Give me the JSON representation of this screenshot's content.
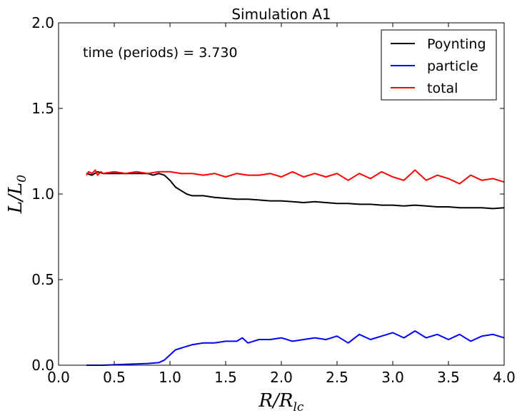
{
  "chart_data": {
    "type": "line",
    "title": "Simulation A1",
    "annotation": "time (periods) = 3.730",
    "xlabel": "R/R_lc",
    "ylabel": "L/L_0",
    "xlim": [
      0.0,
      4.0
    ],
    "ylim": [
      0.0,
      2.0
    ],
    "xticks": [
      "0.0",
      "0.5",
      "1.0",
      "1.5",
      "2.0",
      "2.5",
      "3.0",
      "3.5",
      "4.0"
    ],
    "yticks": [
      "0.0",
      "0.5",
      "1.0",
      "1.5",
      "2.0"
    ],
    "grid": false,
    "legend_position": "top-right",
    "series": [
      {
        "name": "Poynting",
        "color": "#000000",
        "x": [
          0.25,
          0.3,
          0.35,
          0.4,
          0.5,
          0.6,
          0.7,
          0.8,
          0.85,
          0.9,
          0.95,
          1.0,
          1.05,
          1.1,
          1.15,
          1.2,
          1.3,
          1.4,
          1.5,
          1.6,
          1.7,
          1.8,
          1.9,
          2.0,
          2.1,
          2.2,
          2.3,
          2.4,
          2.5,
          2.6,
          2.7,
          2.8,
          2.9,
          3.0,
          3.1,
          3.2,
          3.3,
          3.4,
          3.5,
          3.6,
          3.7,
          3.8,
          3.9,
          4.0
        ],
        "y": [
          1.12,
          1.11,
          1.13,
          1.12,
          1.12,
          1.12,
          1.12,
          1.12,
          1.11,
          1.12,
          1.11,
          1.08,
          1.04,
          1.02,
          1.0,
          0.99,
          0.99,
          0.98,
          0.975,
          0.97,
          0.97,
          0.965,
          0.96,
          0.96,
          0.955,
          0.95,
          0.955,
          0.95,
          0.945,
          0.945,
          0.94,
          0.94,
          0.935,
          0.935,
          0.93,
          0.935,
          0.93,
          0.925,
          0.925,
          0.92,
          0.92,
          0.92,
          0.915,
          0.92
        ]
      },
      {
        "name": "particle",
        "color": "#0000ff",
        "x": [
          0.25,
          0.4,
          0.6,
          0.8,
          0.9,
          0.95,
          1.0,
          1.05,
          1.1,
          1.15,
          1.2,
          1.3,
          1.4,
          1.5,
          1.6,
          1.65,
          1.7,
          1.8,
          1.9,
          2.0,
          2.1,
          2.2,
          2.3,
          2.4,
          2.5,
          2.6,
          2.7,
          2.8,
          2.9,
          3.0,
          3.1,
          3.2,
          3.3,
          3.4,
          3.5,
          3.6,
          3.7,
          3.8,
          3.9,
          4.0
        ],
        "y": [
          0.0,
          0.0,
          0.005,
          0.01,
          0.015,
          0.03,
          0.06,
          0.09,
          0.1,
          0.11,
          0.12,
          0.13,
          0.13,
          0.14,
          0.14,
          0.16,
          0.13,
          0.15,
          0.15,
          0.16,
          0.14,
          0.15,
          0.16,
          0.15,
          0.17,
          0.13,
          0.18,
          0.15,
          0.17,
          0.19,
          0.16,
          0.2,
          0.16,
          0.18,
          0.15,
          0.18,
          0.14,
          0.17,
          0.18,
          0.16
        ]
      },
      {
        "name": "total",
        "color": "#ff0000",
        "x": [
          0.25,
          0.27,
          0.3,
          0.33,
          0.35,
          0.38,
          0.4,
          0.5,
          0.6,
          0.7,
          0.8,
          0.9,
          1.0,
          1.1,
          1.2,
          1.3,
          1.4,
          1.5,
          1.6,
          1.7,
          1.8,
          1.9,
          2.0,
          2.1,
          2.2,
          2.3,
          2.4,
          2.5,
          2.6,
          2.7,
          2.8,
          2.9,
          3.0,
          3.1,
          3.2,
          3.3,
          3.4,
          3.5,
          3.6,
          3.7,
          3.8,
          3.9,
          4.0
        ],
        "y": [
          1.11,
          1.13,
          1.12,
          1.14,
          1.11,
          1.13,
          1.12,
          1.13,
          1.12,
          1.13,
          1.12,
          1.13,
          1.13,
          1.12,
          1.12,
          1.11,
          1.12,
          1.1,
          1.12,
          1.11,
          1.11,
          1.12,
          1.1,
          1.13,
          1.1,
          1.12,
          1.1,
          1.12,
          1.08,
          1.12,
          1.09,
          1.13,
          1.1,
          1.08,
          1.14,
          1.08,
          1.11,
          1.09,
          1.06,
          1.11,
          1.08,
          1.09,
          1.07
        ]
      }
    ]
  }
}
